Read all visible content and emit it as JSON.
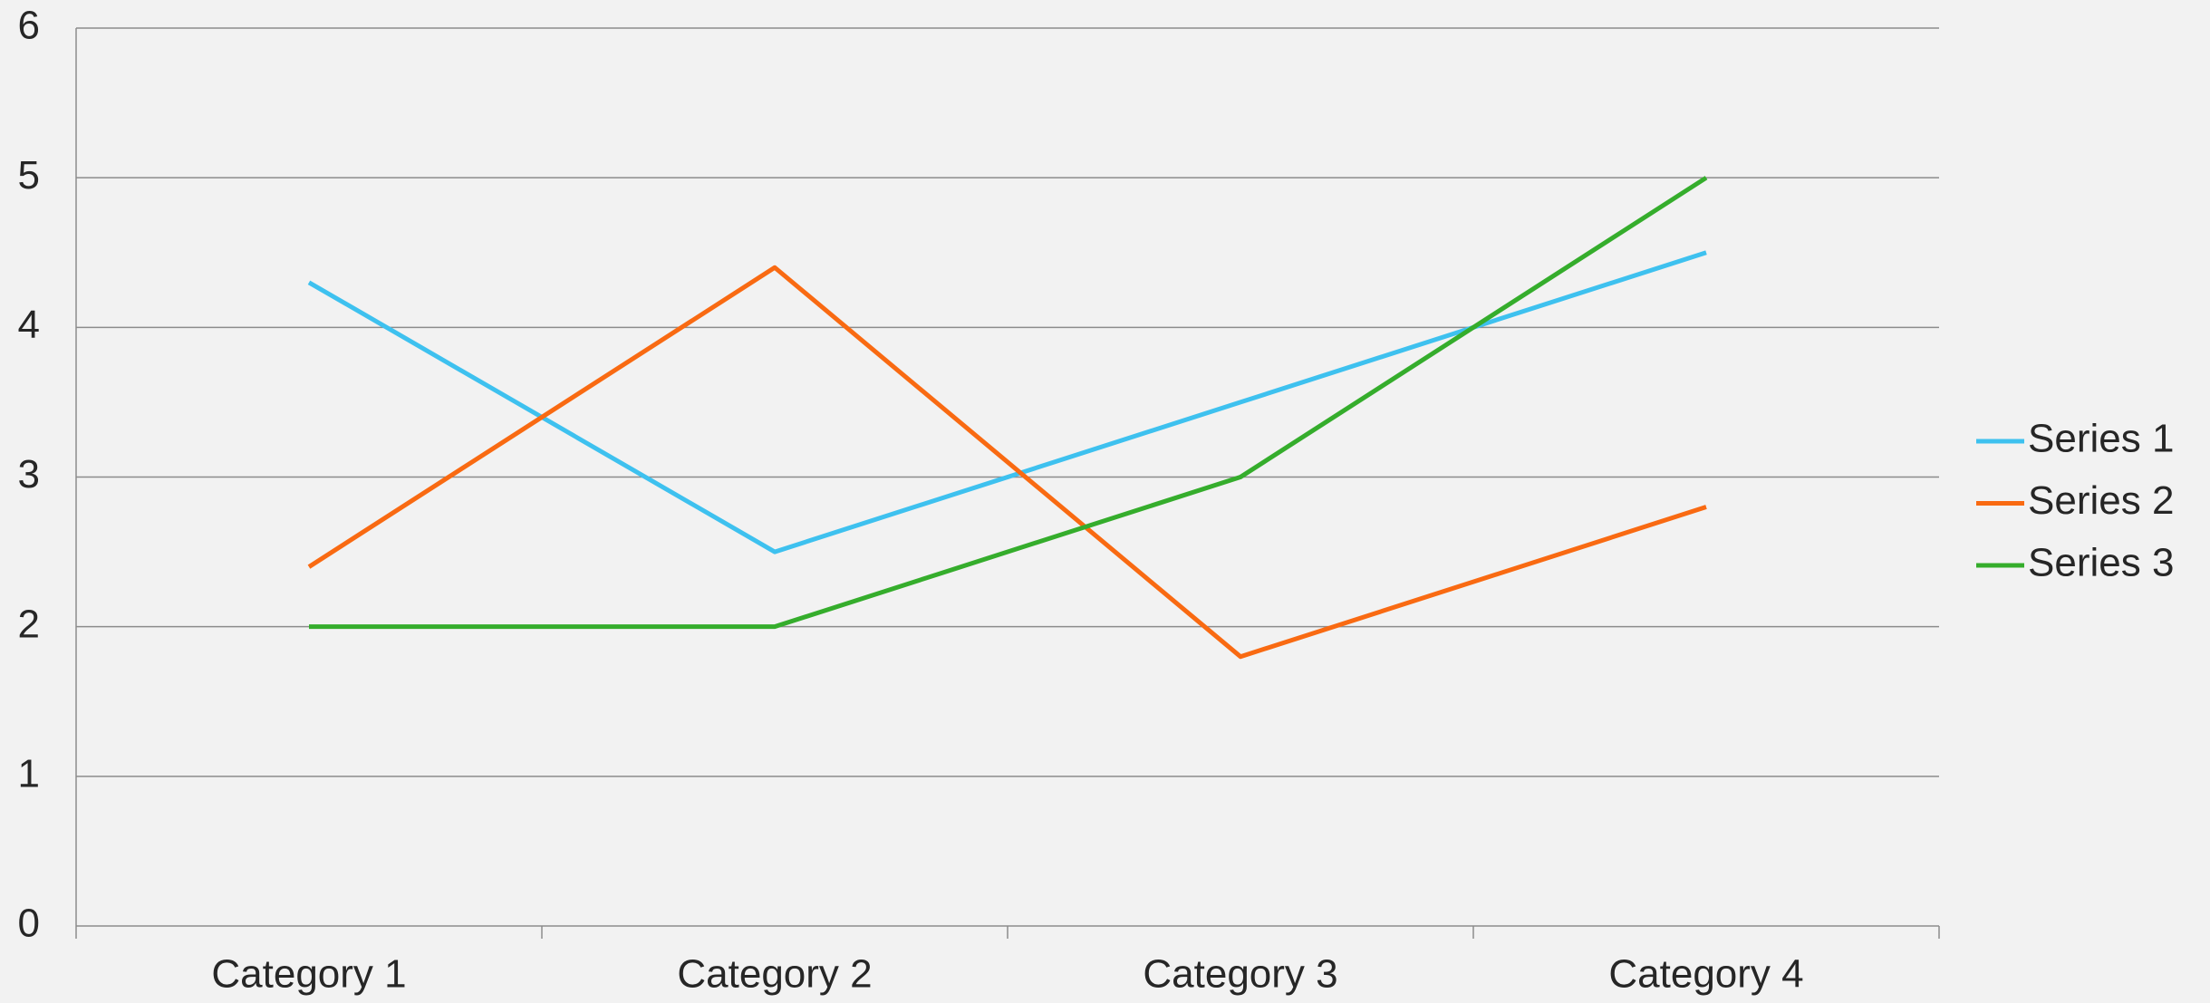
{
  "chart_data": {
    "type": "line",
    "categories": [
      "Category 1",
      "Category 2",
      "Category 3",
      "Category 4"
    ],
    "series": [
      {
        "name": "Series 1",
        "color": "#3ec1ef",
        "values": [
          4.3,
          2.5,
          3.5,
          4.5
        ]
      },
      {
        "name": "Series 2",
        "color": "#f96a12",
        "values": [
          2.4,
          4.4,
          1.8,
          2.8
        ]
      },
      {
        "name": "Series 3",
        "color": "#35ad2c",
        "values": [
          2,
          2,
          3,
          5
        ]
      }
    ],
    "ylim": [
      0,
      6
    ],
    "yticks": [
      0,
      1,
      2,
      3,
      4,
      5,
      6
    ],
    "grid": true,
    "legend": "right"
  }
}
